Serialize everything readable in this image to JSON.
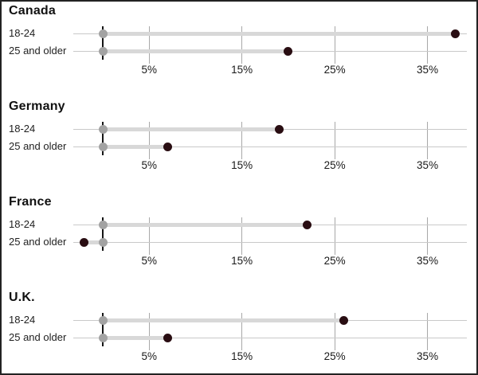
{
  "chart_data": {
    "type": "scatter",
    "subtype": "dumbbell-dot-plot-small-multiples",
    "unit": "%",
    "axis": {
      "tick_labels": [
        "5%",
        "15%",
        "25%",
        "35%"
      ],
      "tick_values": [
        5,
        15,
        25,
        35
      ],
      "xlim": [
        -3.5,
        40
      ],
      "grid": "vertical-on",
      "zero_axis_line": true
    },
    "legend": "none",
    "panels": [
      {
        "title": "Canada",
        "rows": [
          {
            "label": "18-24",
            "baseline_value": 0,
            "value": 38
          },
          {
            "label": "25 and older",
            "baseline_value": 0,
            "value": 20
          }
        ]
      },
      {
        "title": "Germany",
        "rows": [
          {
            "label": "18-24",
            "baseline_value": 0,
            "value": 19
          },
          {
            "label": "25 and older",
            "baseline_value": 0,
            "value": 7
          }
        ]
      },
      {
        "title": "France",
        "rows": [
          {
            "label": "18-24",
            "baseline_value": 0,
            "value": 22
          },
          {
            "label": "25 and older",
            "baseline_value": 0,
            "value": -2
          }
        ]
      },
      {
        "title": "U.K.",
        "rows": [
          {
            "label": "18-24",
            "baseline_value": 0,
            "value": 26
          },
          {
            "label": "25 and older",
            "baseline_value": 0,
            "value": 7
          }
        ]
      }
    ],
    "colors": {
      "value_dot": "#290d12",
      "baseline_dot": "#a3a3a3",
      "connector_bar": "#d8d8d8",
      "row_line": "#c9c9c9",
      "gridline": "#a8a8a8",
      "zero_line": "#151515",
      "text": "#111111",
      "frame_border": "#232323"
    }
  }
}
